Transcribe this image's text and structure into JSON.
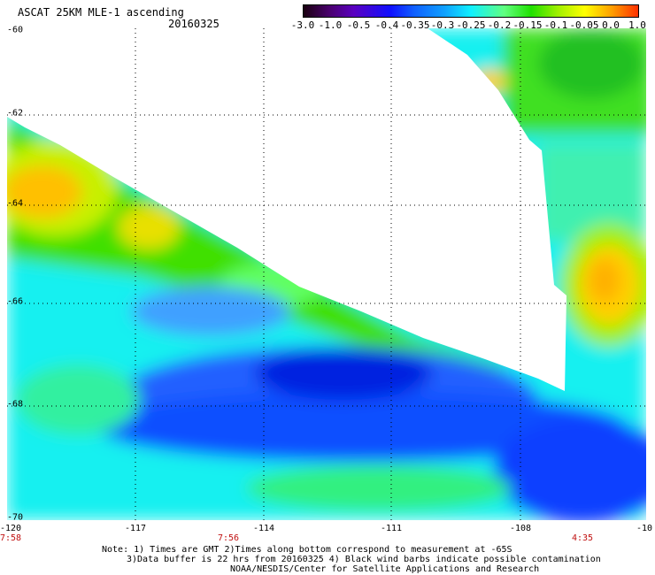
{
  "title": "ASCAT 25KM MLE-1 ascending",
  "date": "20160325",
  "colorbar": {
    "labels": [
      "-3.0",
      "-1.0",
      "-0.5",
      "-0.4",
      "-0.35",
      "-0.3",
      "-0.25",
      "-0.2",
      "-0.15",
      "-0.1",
      "-0.05",
      "0.0",
      "1.0"
    ]
  },
  "latitudes": [
    "-60",
    "-62",
    "-64",
    "-66",
    "-68",
    "-70"
  ],
  "longitudes": [
    "-120",
    "-117",
    "-114",
    "-111",
    "-108",
    "-10"
  ],
  "times": [
    "7:58",
    "7:56",
    "4:35"
  ],
  "notes": [
    "Note: 1) Times are GMT 2)Times along bottom correspond to measurement at -65S",
    "3)Data buffer is 22 hrs from 20160325 4) Black wind barbs indicate possible contamination",
    "NOAA/NESDIS/Center for Satellite Applications and Research"
  ]
}
